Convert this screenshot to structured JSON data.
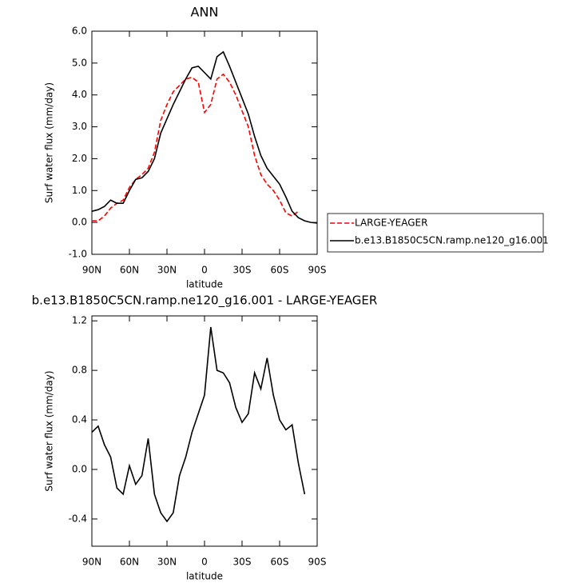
{
  "chart_data": [
    {
      "type": "line",
      "title": "ANN",
      "xlabel": "latitude",
      "ylabel": "Surf water flux (mm/day)",
      "x": [
        90,
        85,
        80,
        75,
        70,
        65,
        60,
        55,
        50,
        45,
        40,
        35,
        30,
        25,
        20,
        15,
        10,
        5,
        0,
        -5,
        -10,
        -15,
        -20,
        -25,
        -30,
        -35,
        -40,
        -45,
        -50,
        -55,
        -60,
        -65,
        -70,
        -75,
        -80,
        -85,
        -90
      ],
      "series": [
        {
          "name": "LARGE-YEAGER",
          "color": "#ff0000",
          "style": "dashed",
          "values": [
            0.05,
            0.05,
            0.2,
            0.45,
            0.6,
            0.7,
            1.1,
            1.35,
            1.5,
            1.7,
            2.2,
            3.2,
            3.7,
            4.1,
            4.3,
            4.5,
            4.55,
            4.4,
            3.45,
            3.7,
            4.5,
            4.65,
            4.4,
            4.0,
            3.5,
            3.0,
            2.1,
            1.5,
            1.2,
            1.0,
            0.7,
            0.3,
            0.2,
            0.35,
            null,
            null,
            null
          ]
        },
        {
          "name": "b.e13.B1850C5CN.ramp.ne120_g16.001",
          "color": "#000000",
          "style": "solid",
          "values": [
            0.35,
            0.4,
            0.5,
            0.7,
            0.6,
            0.6,
            1.0,
            1.35,
            1.4,
            1.6,
            2.0,
            2.8,
            3.25,
            3.7,
            4.1,
            4.5,
            4.85,
            4.9,
            4.7,
            4.5,
            5.2,
            5.35,
            4.9,
            4.4,
            3.9,
            3.4,
            2.7,
            2.1,
            1.7,
            1.45,
            1.2,
            0.8,
            0.35,
            0.15,
            0.05,
            0.0,
            -0.02
          ]
        }
      ],
      "xlim": [
        90,
        -90
      ],
      "xticks": [
        {
          "value": 90,
          "label": "90N"
        },
        {
          "value": 60,
          "label": "60N"
        },
        {
          "value": 30,
          "label": "30N"
        },
        0,
        {
          "value": -30,
          "label": "30S"
        },
        {
          "value": -60,
          "label": "60S"
        },
        {
          "value": -90,
          "label": "90S"
        }
      ],
      "ylim": [
        -1,
        6
      ],
      "yticks": [
        {
          "value": -1,
          "label": "-1.0"
        },
        {
          "value": 0,
          "label": "0.0"
        },
        {
          "value": 1,
          "label": "1.0"
        },
        {
          "value": 2,
          "label": "2.0"
        },
        {
          "value": 3,
          "label": "3.0"
        },
        {
          "value": 4,
          "label": "4.0"
        },
        {
          "value": 5,
          "label": "5.0"
        },
        {
          "value": 6,
          "label": "6.0"
        }
      ],
      "legend": "right"
    },
    {
      "type": "line",
      "title": "b.e13.B1850C5CN.ramp.ne120_g16.001 - LARGE-YEAGER",
      "xlabel": "latitude",
      "ylabel": "Surf water flux (mm/day)",
      "x": [
        90,
        85,
        80,
        75,
        70,
        65,
        60,
        55,
        50,
        45,
        40,
        35,
        30,
        25,
        20,
        15,
        10,
        5,
        0,
        -5,
        -10,
        -15,
        -20,
        -25,
        -30,
        -35,
        -40,
        -45,
        -50,
        -55,
        -60,
        -65,
        -70,
        -75,
        -80,
        -85,
        -90
      ],
      "series": [
        {
          "color": "#000000",
          "style": "solid",
          "values": [
            0.3,
            0.35,
            0.2,
            0.1,
            -0.15,
            -0.2,
            0.03,
            -0.12,
            -0.05,
            0.25,
            -0.2,
            -0.35,
            -0.42,
            -0.35,
            -0.05,
            0.1,
            0.3,
            0.45,
            0.6,
            1.15,
            0.8,
            0.78,
            0.7,
            0.5,
            0.38,
            0.45,
            0.78,
            0.65,
            0.9,
            0.6,
            0.4,
            0.32,
            0.36,
            0.05,
            -0.2,
            null,
            null
          ]
        }
      ],
      "xlim": [
        90,
        -90
      ],
      "xticks": [
        {
          "value": 90,
          "label": "90N"
        },
        {
          "value": 60,
          "label": "60N"
        },
        {
          "value": 30,
          "label": "30N"
        },
        0,
        {
          "value": -30,
          "label": "30S"
        },
        {
          "value": -60,
          "label": "60S"
        },
        {
          "value": -90,
          "label": "90S"
        }
      ],
      "ylim": [
        -0.62,
        1.24
      ],
      "yticks": [
        {
          "value": -0.4,
          "label": "-0.4"
        },
        {
          "value": 0,
          "label": "0.0"
        },
        0.4,
        0.8,
        1.2
      ]
    }
  ]
}
